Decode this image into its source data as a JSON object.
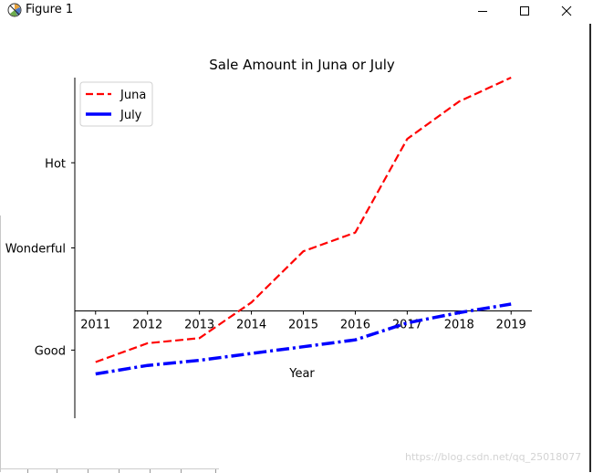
{
  "window": {
    "title": "Figure 1",
    "minimize_icon": "minimize-icon",
    "maximize_icon": "maximize-icon",
    "close_icon": "close-icon"
  },
  "watermark": "https://blog.csdn.net/qq_25018077",
  "chart_data": {
    "type": "line",
    "title": "Sale Amount in Juna or July",
    "xlabel": "Year",
    "ylabel": "",
    "x": [
      2011,
      2012,
      2013,
      2014,
      2015,
      2016,
      2017,
      2018,
      2019
    ],
    "xlim": [
      2010.6,
      2019.4
    ],
    "ylim": [
      0,
      10
    ],
    "yticks": [
      {
        "value": 2.0,
        "label": "Good"
      },
      {
        "value": 5.0,
        "label": "Wonderful"
      },
      {
        "value": 7.5,
        "label": "Hot"
      }
    ],
    "x_axis_at_y": 3.15,
    "series": [
      {
        "name": "Juna",
        "color": "#ff0000",
        "style": "dashed",
        "values": [
          1.65,
          2.2,
          2.35,
          3.4,
          4.9,
          5.45,
          8.2,
          9.3,
          10.0
        ]
      },
      {
        "name": "July",
        "color": "#0000ff",
        "style": "dashdot",
        "values": [
          1.3,
          1.55,
          1.7,
          1.9,
          2.1,
          2.3,
          2.8,
          3.1,
          3.35
        ]
      }
    ],
    "legend": "upper left",
    "grid": false
  }
}
